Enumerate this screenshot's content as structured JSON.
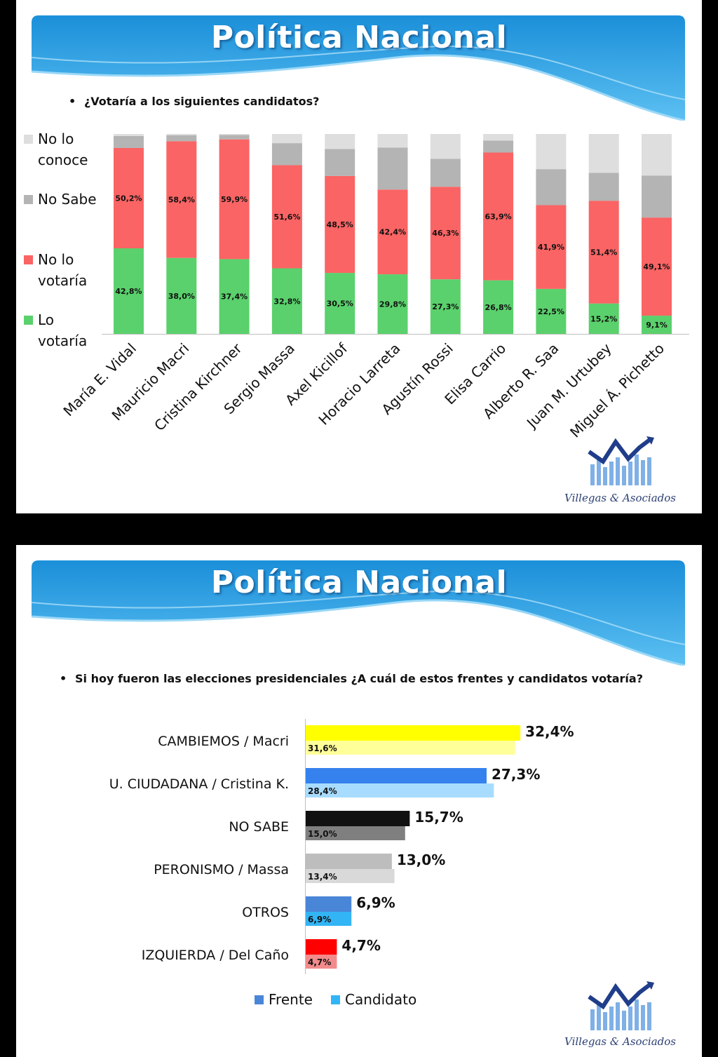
{
  "slide1": {
    "title": "Política Nacional",
    "question": "¿Votaría a los siguientes candidatos?",
    "logo_text": "Villegas & Asociados"
  },
  "slide2": {
    "title": "Política Nacional",
    "question": "Si hoy fueron las elecciones presidenciales ¿A cuál de estos frentes y candidatos votaría?",
    "logo_text": "Villegas & Asociados"
  },
  "chart_data": [
    {
      "type": "bar",
      "stacked": true,
      "title": "¿Votaría a los siguientes candidatos?",
      "categories": [
        "María E. Vidal",
        "Mauricio Macri",
        "Cristina Kirchner",
        "Sergio Massa",
        "Axel Kicillof",
        "Horacio Larreta",
        "Agustín Rossi",
        "Elisa Carrio",
        "Alberto R. Saa",
        "Juan M. Urtubey",
        "Miguel Á. Pichetto"
      ],
      "series": [
        {
          "name": "Lo votaría",
          "color": "#5ad16c",
          "values": [
            42.8,
            38.0,
            37.4,
            32.8,
            30.5,
            29.8,
            27.3,
            26.8,
            22.5,
            15.2,
            9.1
          ],
          "labels": [
            "42,8%",
            "38,0%",
            "37,4%",
            "32,8%",
            "30,5%",
            "29,8%",
            "27,3%",
            "26,8%",
            "22,5%",
            "15,2%",
            "9,1%"
          ]
        },
        {
          "name": "No lo votaría",
          "color": "#fa6464",
          "values": [
            50.2,
            58.4,
            59.9,
            51.6,
            48.5,
            42.4,
            46.3,
            63.9,
            41.9,
            51.4,
            49.1
          ],
          "labels": [
            "50,2%",
            "58,4%",
            "59,9%",
            "51,6%",
            "48,5%",
            "42,4%",
            "46,3%",
            "63,9%",
            "41,9%",
            "51,4%",
            "49,1%"
          ]
        },
        {
          "name": "No Sabe",
          "color": "#b4b4b4",
          "values": [
            6.0,
            3.0,
            2.2,
            11.0,
            13.5,
            21.0,
            14.0,
            6.0,
            18.0,
            14.0,
            21.0
          ]
        },
        {
          "name": "No lo conoce",
          "color": "#dedede",
          "values": [
            1.0,
            0.6,
            0.5,
            4.6,
            7.5,
            6.8,
            12.4,
            3.3,
            17.6,
            19.4,
            20.8
          ]
        }
      ],
      "legend": [
        {
          "lines": [
            "No lo",
            "conoce"
          ],
          "color": "#dedede"
        },
        {
          "lines": [
            "No Sabe"
          ],
          "color": "#b4b4b4"
        },
        {
          "lines": [
            "No lo",
            "votaría"
          ],
          "color": "#fa6464"
        },
        {
          "lines": [
            "Lo",
            "votaría"
          ],
          "color": "#5ad16c"
        }
      ],
      "ylim": [
        0,
        100
      ],
      "legend_position": "left"
    },
    {
      "type": "bar",
      "orientation": "horizontal",
      "title": "Si hoy fueron las elecciones presidenciales ¿A cuál de estos frentes y candidatos votaría?",
      "categories": [
        "CAMBIEMOS / Macri",
        "U. CIUDADANA / Cristina K.",
        "NO SABE",
        "PERONISMO / Massa",
        "OTROS",
        "IZQUIERDA / Del Caño"
      ],
      "series": [
        {
          "name": "Frente",
          "values": [
            32.4,
            27.3,
            15.7,
            13.0,
            6.9,
            4.7
          ],
          "labels": [
            "32,4%",
            "27,3%",
            "15,7%",
            "13,0%",
            "6,9%",
            "4,7%"
          ],
          "colors": [
            "#ffff00",
            "#3581ee",
            "#111111",
            "#bdbdbd",
            "#4a86d8",
            "#ff0000"
          ]
        },
        {
          "name": "Candidato",
          "values": [
            31.6,
            28.4,
            15.0,
            13.4,
            6.9,
            4.7
          ],
          "labels": [
            "31,6%",
            "28,4%",
            "15,0%",
            "13,4%",
            "6,9%",
            "4,7%"
          ],
          "colors": [
            "#ffff99",
            "#a8dcff",
            "#7f7f7f",
            "#d9d9d9",
            "#33b5f5",
            "#f28b8b"
          ]
        }
      ],
      "legend": [
        {
          "name": "Frente",
          "color": "#4a86d8"
        },
        {
          "name": "Candidato",
          "color": "#33b5f5"
        }
      ],
      "xlim": [
        0,
        36
      ],
      "legend_position": "bottom"
    }
  ]
}
